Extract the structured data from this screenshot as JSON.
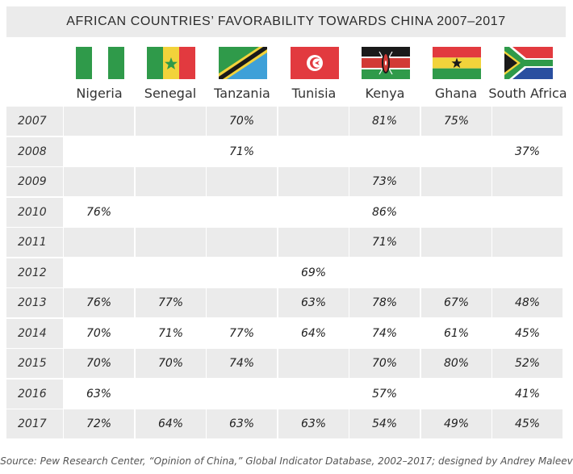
{
  "title": "AFRICAN COUNTRIES’ FAVORABILITY TOWARDS CHINA 2007–2017",
  "source": "Source: Pew Research Center, “Opinion of China,” Global Indicator Database, 2002–2017; designed by Andrey Maleev",
  "countries": [
    {
      "name": "Nigeria",
      "flag_icon": "nigeria-flag-icon"
    },
    {
      "name": "Senegal",
      "flag_icon": "senegal-flag-icon"
    },
    {
      "name": "Tanzania",
      "flag_icon": "tanzania-flag-icon"
    },
    {
      "name": "Tunisia",
      "flag_icon": "tunisia-flag-icon"
    },
    {
      "name": "Kenya",
      "flag_icon": "kenya-flag-icon"
    },
    {
      "name": "Ghana",
      "flag_icon": "ghana-flag-icon"
    },
    {
      "name": "South Africa",
      "flag_icon": "south-africa-flag-icon"
    }
  ],
  "chart_data": {
    "type": "table",
    "title": "AFRICAN COUNTRIES’ FAVORABILITY TOWARDS CHINA 2007–2017",
    "columns": [
      "Nigeria",
      "Senegal",
      "Tanzania",
      "Tunisia",
      "Kenya",
      "Ghana",
      "South Africa"
    ],
    "rows": [
      {
        "year": "2007",
        "values": [
          "",
          "",
          "70%",
          "",
          "81%",
          "75%",
          ""
        ]
      },
      {
        "year": "2008",
        "values": [
          "",
          "",
          "71%",
          "",
          "",
          "",
          "37%"
        ]
      },
      {
        "year": "2009",
        "values": [
          "",
          "",
          "",
          "",
          "73%",
          "",
          ""
        ]
      },
      {
        "year": "2010",
        "values": [
          "76%",
          "",
          "",
          "",
          "86%",
          "",
          ""
        ]
      },
      {
        "year": "2011",
        "values": [
          "",
          "",
          "",
          "",
          "71%",
          "",
          ""
        ]
      },
      {
        "year": "2012",
        "values": [
          "",
          "",
          "",
          "69%",
          "",
          "",
          ""
        ]
      },
      {
        "year": "2013",
        "values": [
          "76%",
          "77%",
          "",
          "63%",
          "78%",
          "67%",
          "48%"
        ]
      },
      {
        "year": "2014",
        "values": [
          "70%",
          "71%",
          "77%",
          "64%",
          "74%",
          "61%",
          "45%"
        ]
      },
      {
        "year": "2015",
        "values": [
          "70%",
          "70%",
          "74%",
          "",
          "70%",
          "80%",
          "52%"
        ]
      },
      {
        "year": "2016",
        "values": [
          "63%",
          "",
          "",
          "",
          "57%",
          "",
          "41%"
        ]
      },
      {
        "year": "2017",
        "values": [
          "72%",
          "64%",
          "63%",
          "63%",
          "54%",
          "49%",
          "45%"
        ]
      }
    ]
  }
}
